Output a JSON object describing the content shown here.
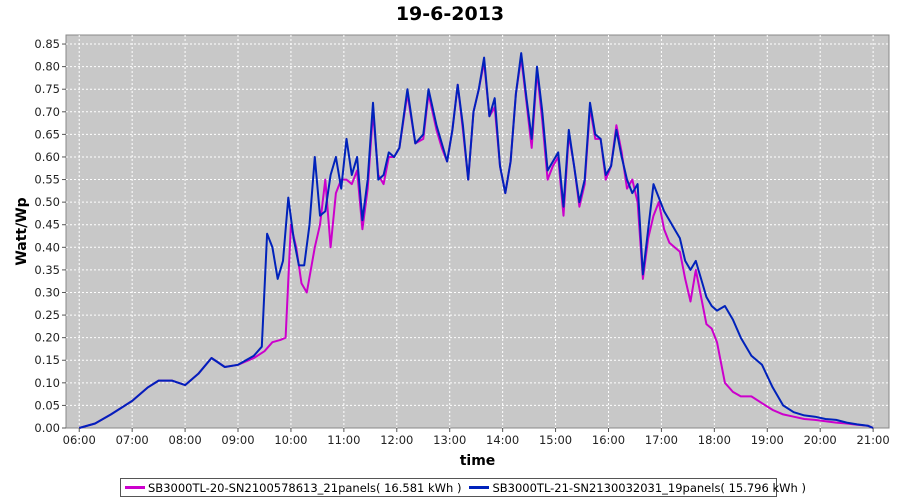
{
  "chart_data": {
    "type": "line",
    "title": "19-6-2013",
    "xlabel": "time",
    "ylabel": "Watt/Wp",
    "xlim": [
      5.75,
      21.3
    ],
    "ylim": [
      0,
      0.87
    ],
    "x_ticks": [
      "06:00",
      "07:00",
      "08:00",
      "09:00",
      "10:00",
      "11:00",
      "12:00",
      "13:00",
      "14:00",
      "15:00",
      "16:00",
      "17:00",
      "18:00",
      "19:00",
      "20:00",
      "21:00"
    ],
    "y_ticks": [
      "0.00",
      "0.05",
      "0.10",
      "0.15",
      "0.20",
      "0.25",
      "0.30",
      "0.35",
      "0.40",
      "0.45",
      "0.50",
      "0.55",
      "0.60",
      "0.65",
      "0.70",
      "0.75",
      "0.80",
      "0.85"
    ],
    "grid": true,
    "legend_position": "bottom",
    "series": [
      {
        "name": "SB3000TL-20-SN2100578613_21panels( 16.581 kWh )",
        "color": "#cc00cc",
        "x": [
          6.0,
          6.3,
          6.6,
          7.0,
          7.3,
          7.5,
          7.75,
          8.0,
          8.25,
          8.5,
          8.75,
          9.0,
          9.3,
          9.5,
          9.65,
          9.8,
          9.9,
          10.0,
          10.1,
          10.2,
          10.3,
          10.45,
          10.55,
          10.65,
          10.75,
          10.85,
          10.95,
          11.05,
          11.15,
          11.25,
          11.35,
          11.45,
          11.55,
          11.65,
          11.75,
          11.85,
          11.95,
          12.05,
          12.2,
          12.35,
          12.5,
          12.6,
          12.75,
          12.85,
          12.95,
          13.05,
          13.15,
          13.25,
          13.35,
          13.45,
          13.55,
          13.65,
          13.75,
          13.85,
          13.95,
          14.05,
          14.15,
          14.25,
          14.35,
          14.45,
          14.55,
          14.65,
          14.75,
          14.85,
          14.95,
          15.05,
          15.15,
          15.25,
          15.35,
          15.45,
          15.55,
          15.65,
          15.75,
          15.85,
          15.95,
          16.05,
          16.15,
          16.25,
          16.35,
          16.45,
          16.55,
          16.65,
          16.75,
          16.85,
          16.95,
          17.05,
          17.15,
          17.25,
          17.35,
          17.45,
          17.55,
          17.65,
          17.75,
          17.85,
          17.95,
          18.05,
          18.2,
          18.35,
          18.5,
          18.7,
          18.9,
          19.1,
          19.3,
          19.5,
          19.7,
          19.9,
          20.1,
          20.3,
          20.5,
          20.7,
          20.9,
          21.0
        ],
        "y": [
          0.0,
          0.01,
          0.03,
          0.06,
          0.09,
          0.105,
          0.105,
          0.095,
          0.12,
          0.155,
          0.135,
          0.14,
          0.155,
          0.17,
          0.19,
          0.195,
          0.2,
          0.45,
          0.4,
          0.32,
          0.3,
          0.4,
          0.45,
          0.55,
          0.4,
          0.52,
          0.55,
          0.55,
          0.54,
          0.57,
          0.44,
          0.53,
          0.7,
          0.56,
          0.54,
          0.6,
          0.6,
          0.62,
          0.74,
          0.63,
          0.64,
          0.74,
          0.66,
          0.62,
          0.59,
          0.66,
          0.76,
          0.66,
          0.55,
          0.7,
          0.75,
          0.81,
          0.69,
          0.71,
          0.58,
          0.52,
          0.59,
          0.74,
          0.82,
          0.72,
          0.62,
          0.79,
          0.68,
          0.55,
          0.58,
          0.6,
          0.47,
          0.65,
          0.58,
          0.49,
          0.54,
          0.71,
          0.64,
          0.64,
          0.55,
          0.58,
          0.67,
          0.61,
          0.53,
          0.55,
          0.5,
          0.33,
          0.42,
          0.47,
          0.5,
          0.44,
          0.41,
          0.4,
          0.39,
          0.33,
          0.28,
          0.35,
          0.29,
          0.23,
          0.22,
          0.19,
          0.1,
          0.08,
          0.07,
          0.07,
          0.055,
          0.04,
          0.03,
          0.025,
          0.02,
          0.018,
          0.015,
          0.012,
          0.01,
          0.007,
          0.005,
          0.0
        ]
      },
      {
        "name": "SB3000TL-21-SN2130032031_19panels( 15.796 kWh )",
        "color": "#0022bb",
        "x": [
          6.0,
          6.3,
          6.6,
          7.0,
          7.3,
          7.5,
          7.75,
          8.0,
          8.25,
          8.5,
          8.75,
          9.0,
          9.3,
          9.45,
          9.55,
          9.65,
          9.75,
          9.85,
          9.95,
          10.05,
          10.15,
          10.25,
          10.35,
          10.45,
          10.55,
          10.65,
          10.75,
          10.85,
          10.95,
          11.05,
          11.15,
          11.25,
          11.35,
          11.45,
          11.55,
          11.65,
          11.75,
          11.85,
          11.95,
          12.05,
          12.2,
          12.35,
          12.5,
          12.6,
          12.75,
          12.85,
          12.95,
          13.05,
          13.15,
          13.25,
          13.35,
          13.45,
          13.55,
          13.65,
          13.75,
          13.85,
          13.95,
          14.05,
          14.15,
          14.25,
          14.35,
          14.45,
          14.55,
          14.65,
          14.75,
          14.85,
          14.95,
          15.05,
          15.15,
          15.25,
          15.35,
          15.45,
          15.55,
          15.65,
          15.75,
          15.85,
          15.95,
          16.05,
          16.15,
          16.25,
          16.35,
          16.45,
          16.55,
          16.65,
          16.75,
          16.85,
          16.95,
          17.05,
          17.15,
          17.25,
          17.35,
          17.45,
          17.55,
          17.65,
          17.75,
          17.85,
          17.95,
          18.05,
          18.2,
          18.35,
          18.5,
          18.7,
          18.9,
          19.1,
          19.3,
          19.5,
          19.7,
          19.9,
          20.1,
          20.3,
          20.5,
          20.7,
          20.9,
          21.0
        ],
        "y": [
          0.0,
          0.01,
          0.03,
          0.06,
          0.09,
          0.105,
          0.105,
          0.095,
          0.12,
          0.155,
          0.135,
          0.14,
          0.16,
          0.18,
          0.43,
          0.4,
          0.33,
          0.37,
          0.51,
          0.42,
          0.36,
          0.36,
          0.45,
          0.6,
          0.47,
          0.48,
          0.56,
          0.6,
          0.53,
          0.64,
          0.56,
          0.6,
          0.46,
          0.55,
          0.72,
          0.55,
          0.56,
          0.61,
          0.6,
          0.62,
          0.75,
          0.63,
          0.65,
          0.75,
          0.67,
          0.63,
          0.59,
          0.66,
          0.76,
          0.67,
          0.55,
          0.7,
          0.75,
          0.82,
          0.69,
          0.73,
          0.58,
          0.52,
          0.59,
          0.74,
          0.83,
          0.73,
          0.64,
          0.8,
          0.7,
          0.57,
          0.59,
          0.61,
          0.49,
          0.66,
          0.58,
          0.5,
          0.55,
          0.72,
          0.65,
          0.64,
          0.56,
          0.58,
          0.66,
          0.6,
          0.55,
          0.52,
          0.54,
          0.34,
          0.44,
          0.54,
          0.51,
          0.48,
          0.46,
          0.44,
          0.42,
          0.37,
          0.35,
          0.37,
          0.33,
          0.29,
          0.27,
          0.26,
          0.27,
          0.24,
          0.2,
          0.16,
          0.14,
          0.09,
          0.05,
          0.035,
          0.028,
          0.025,
          0.02,
          0.018,
          0.012,
          0.008,
          0.005,
          0.0
        ]
      }
    ]
  }
}
